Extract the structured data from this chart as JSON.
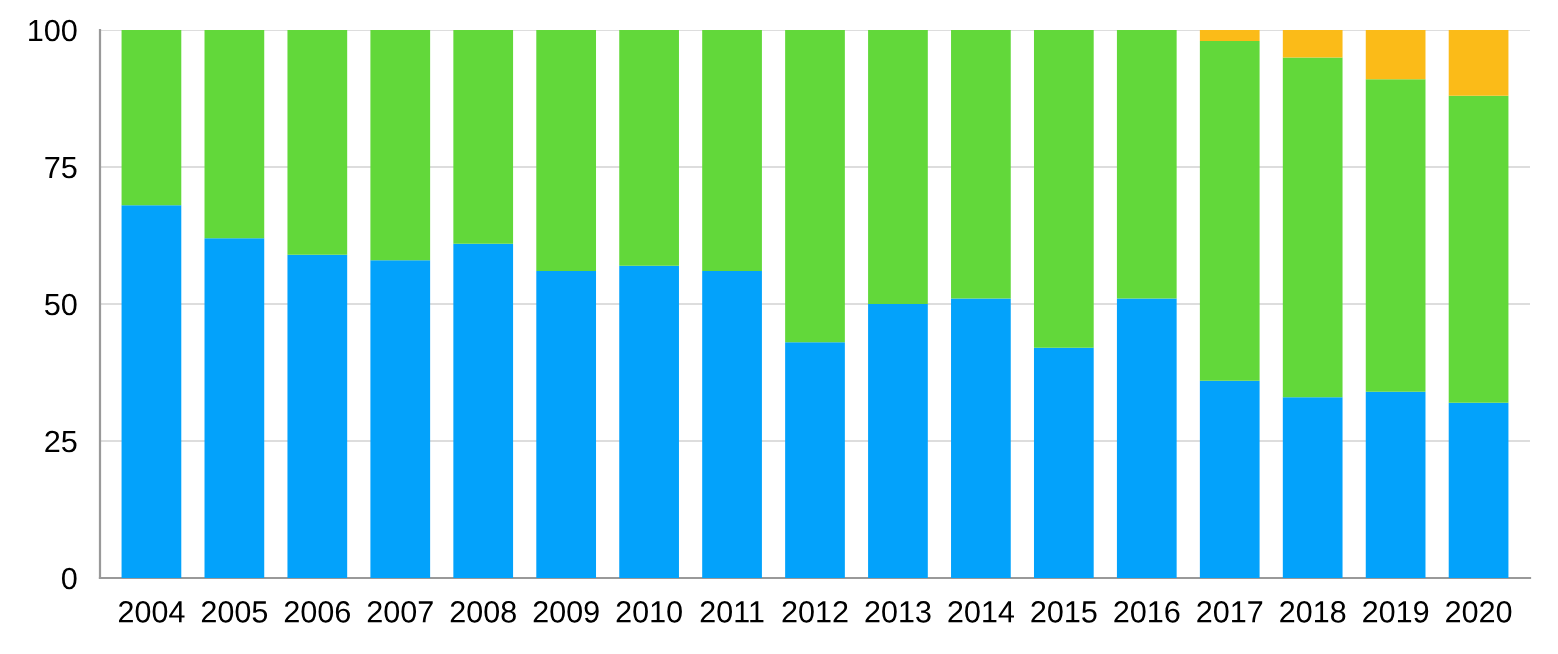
{
  "chart_data": {
    "type": "bar",
    "stacked": true,
    "categories": [
      "2004",
      "2005",
      "2006",
      "2007",
      "2008",
      "2009",
      "2010",
      "2011",
      "2012",
      "2013",
      "2014",
      "2015",
      "2016",
      "2017",
      "2018",
      "2019",
      "2020"
    ],
    "series": [
      {
        "color": "#03a2fb",
        "values": [
          68,
          62,
          59,
          58,
          61,
          56,
          57,
          56,
          43,
          50,
          51,
          42,
          51,
          36,
          33,
          34,
          32
        ]
      },
      {
        "color": "#62d83a",
        "values": [
          32,
          38,
          41,
          42,
          39,
          44,
          43,
          44,
          57,
          50,
          49,
          58,
          49,
          62,
          62,
          57,
          56
        ]
      },
      {
        "color": "#fbbb18",
        "values": [
          0,
          0,
          0,
          0,
          0,
          0,
          0,
          0,
          0,
          0,
          0,
          0,
          0,
          2,
          5,
          9,
          12
        ]
      }
    ],
    "ylim": [
      0,
      100
    ],
    "yticks": [
      0,
      25,
      50,
      75,
      100
    ],
    "grid": "y",
    "legend": false
  }
}
